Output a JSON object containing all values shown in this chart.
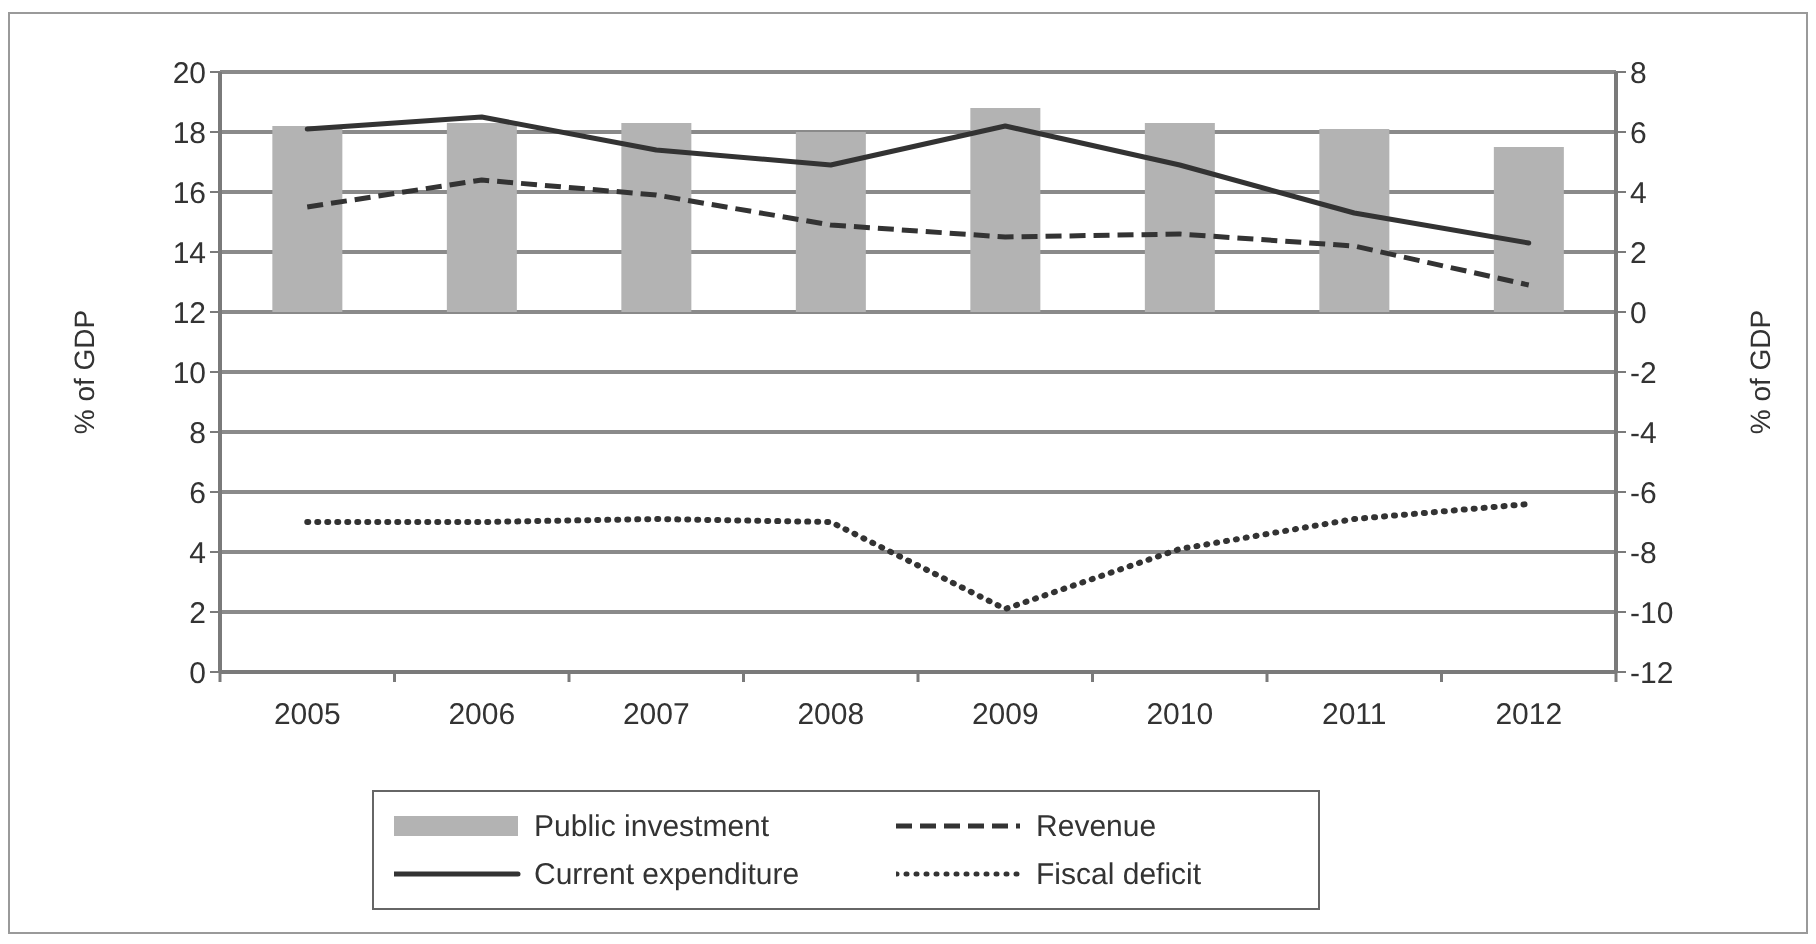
{
  "chart_data": {
    "type": "bar",
    "categories": [
      "2005",
      "2006",
      "2007",
      "2008",
      "2009",
      "2010",
      "2011",
      "2012"
    ],
    "ylabel": "% of GDP",
    "y2label": "% of GDP",
    "ylim": [
      0,
      20
    ],
    "yticks": [
      0,
      2,
      4,
      6,
      8,
      10,
      12,
      14,
      16,
      18,
      20
    ],
    "y2lim": [
      -12,
      8
    ],
    "y2ticks": [
      -12,
      -10,
      -8,
      -6,
      -4,
      -2,
      0,
      2,
      4,
      6,
      8
    ],
    "grid": "y",
    "legend": "bottom",
    "marker": "none",
    "series": [
      {
        "name": "Public investment",
        "axis": "y2",
        "color": "#b3b3b3",
        "values": [
          6.2,
          6.3,
          6.3,
          6.0,
          6.8,
          6.3,
          6.1,
          5.5
        ]
      },
      {
        "name": "Current expenditure",
        "type": "line",
        "axis": "y",
        "line_style": "solid",
        "color": "#333333",
        "values": [
          18.1,
          18.5,
          17.4,
          16.9,
          18.2,
          16.9,
          15.3,
          14.3
        ]
      },
      {
        "name": "Revenue",
        "type": "line",
        "axis": "y",
        "line_style": "dashed",
        "color": "#333333",
        "values": [
          15.5,
          16.4,
          15.9,
          14.9,
          14.5,
          14.6,
          14.2,
          12.9
        ]
      },
      {
        "name": "Fiscal deficit",
        "type": "line",
        "axis": "y2",
        "line_style": "dotted",
        "color": "#333333",
        "values": [
          -7.0,
          -7.0,
          -6.9,
          -7.0,
          -9.9,
          -7.9,
          -6.9,
          -6.4
        ]
      }
    ]
  }
}
